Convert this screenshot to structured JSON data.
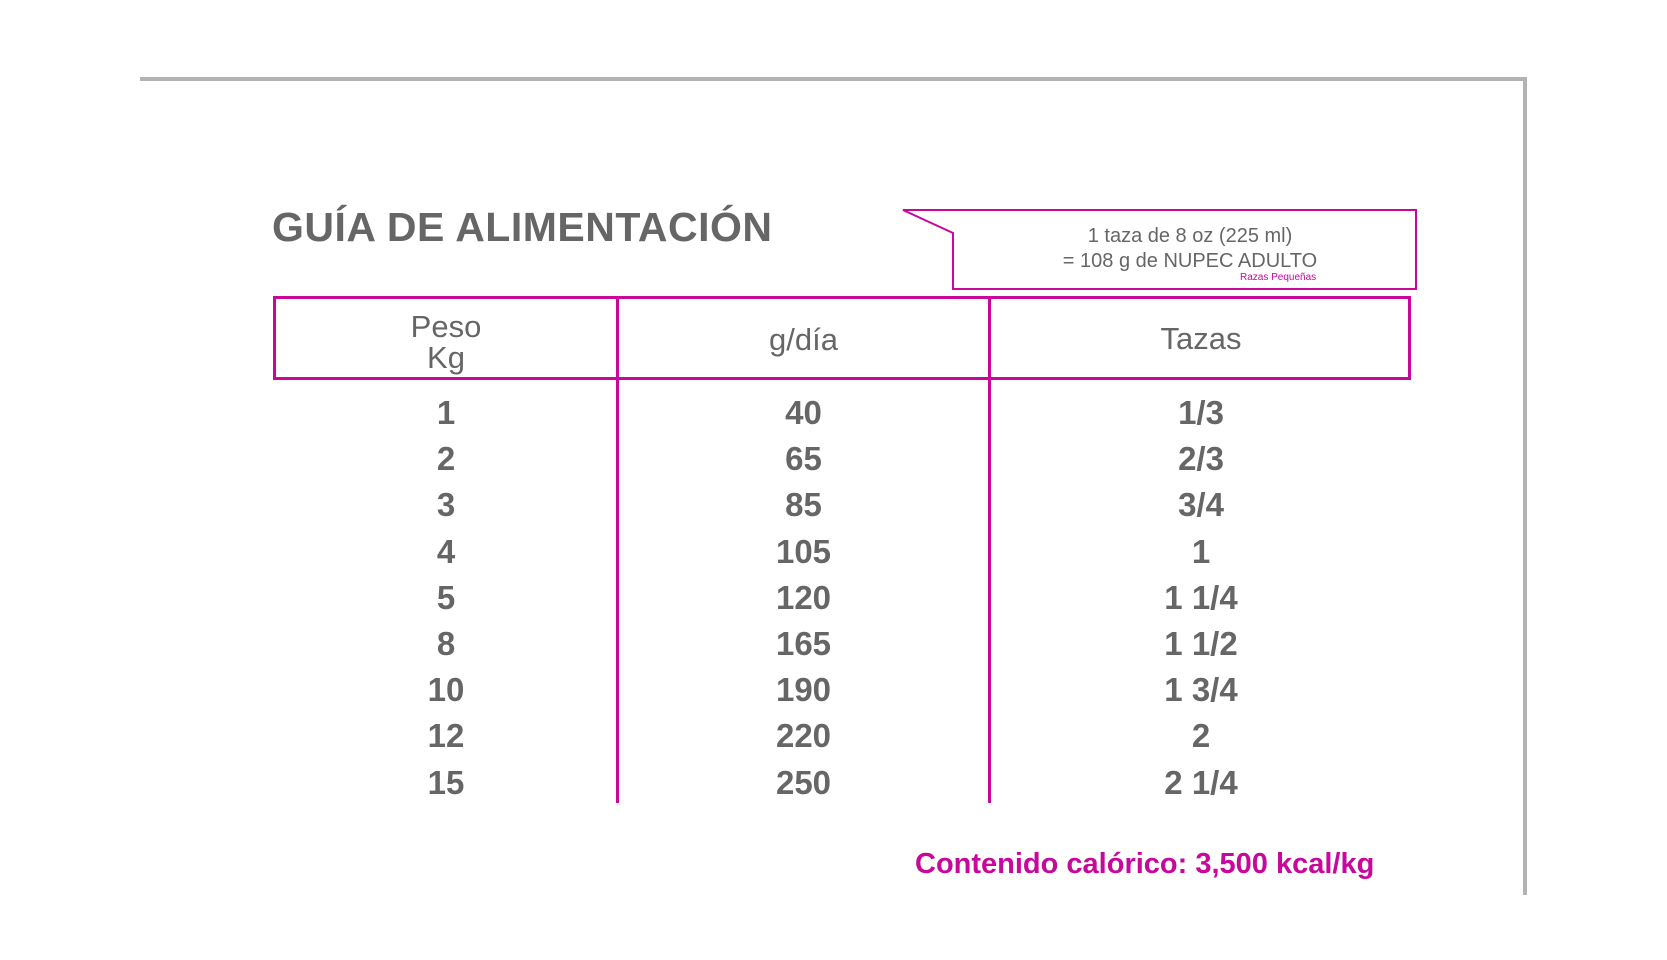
{
  "title": "GUÍA DE ALIMENTACIÓN",
  "note": {
    "line1": "1 taza de 8 oz (225 ml)",
    "line2": "= 108 g de NUPEC ADULTO",
    "sub": "Razas Pequeñas"
  },
  "table": {
    "headers": {
      "peso_line1": "Peso",
      "peso_line2": "Kg",
      "gdia": "g/día",
      "tazas": "Tazas"
    },
    "rows": [
      {
        "peso": "1",
        "gdia": "40",
        "tazas": "1/3"
      },
      {
        "peso": "2",
        "gdia": "65",
        "tazas": "2/3"
      },
      {
        "peso": "3",
        "gdia": "85",
        "tazas": "3/4"
      },
      {
        "peso": "4",
        "gdia": "105",
        "tazas": "1"
      },
      {
        "peso": "5",
        "gdia": "120",
        "tazas": "1 1/4"
      },
      {
        "peso": "8",
        "gdia": "165",
        "tazas": "1 1/2"
      },
      {
        "peso": "10",
        "gdia": "190",
        "tazas": "1 3/4"
      },
      {
        "peso": "12",
        "gdia": "220",
        "tazas": "2"
      },
      {
        "peso": "15",
        "gdia": "250",
        "tazas": "2 1/4"
      }
    ]
  },
  "calorie": "Contenido calórico: 3,500 kcal/kg",
  "colors": {
    "accent": "#c8079b",
    "text": "#666666",
    "frame": "#b3b3b3"
  }
}
